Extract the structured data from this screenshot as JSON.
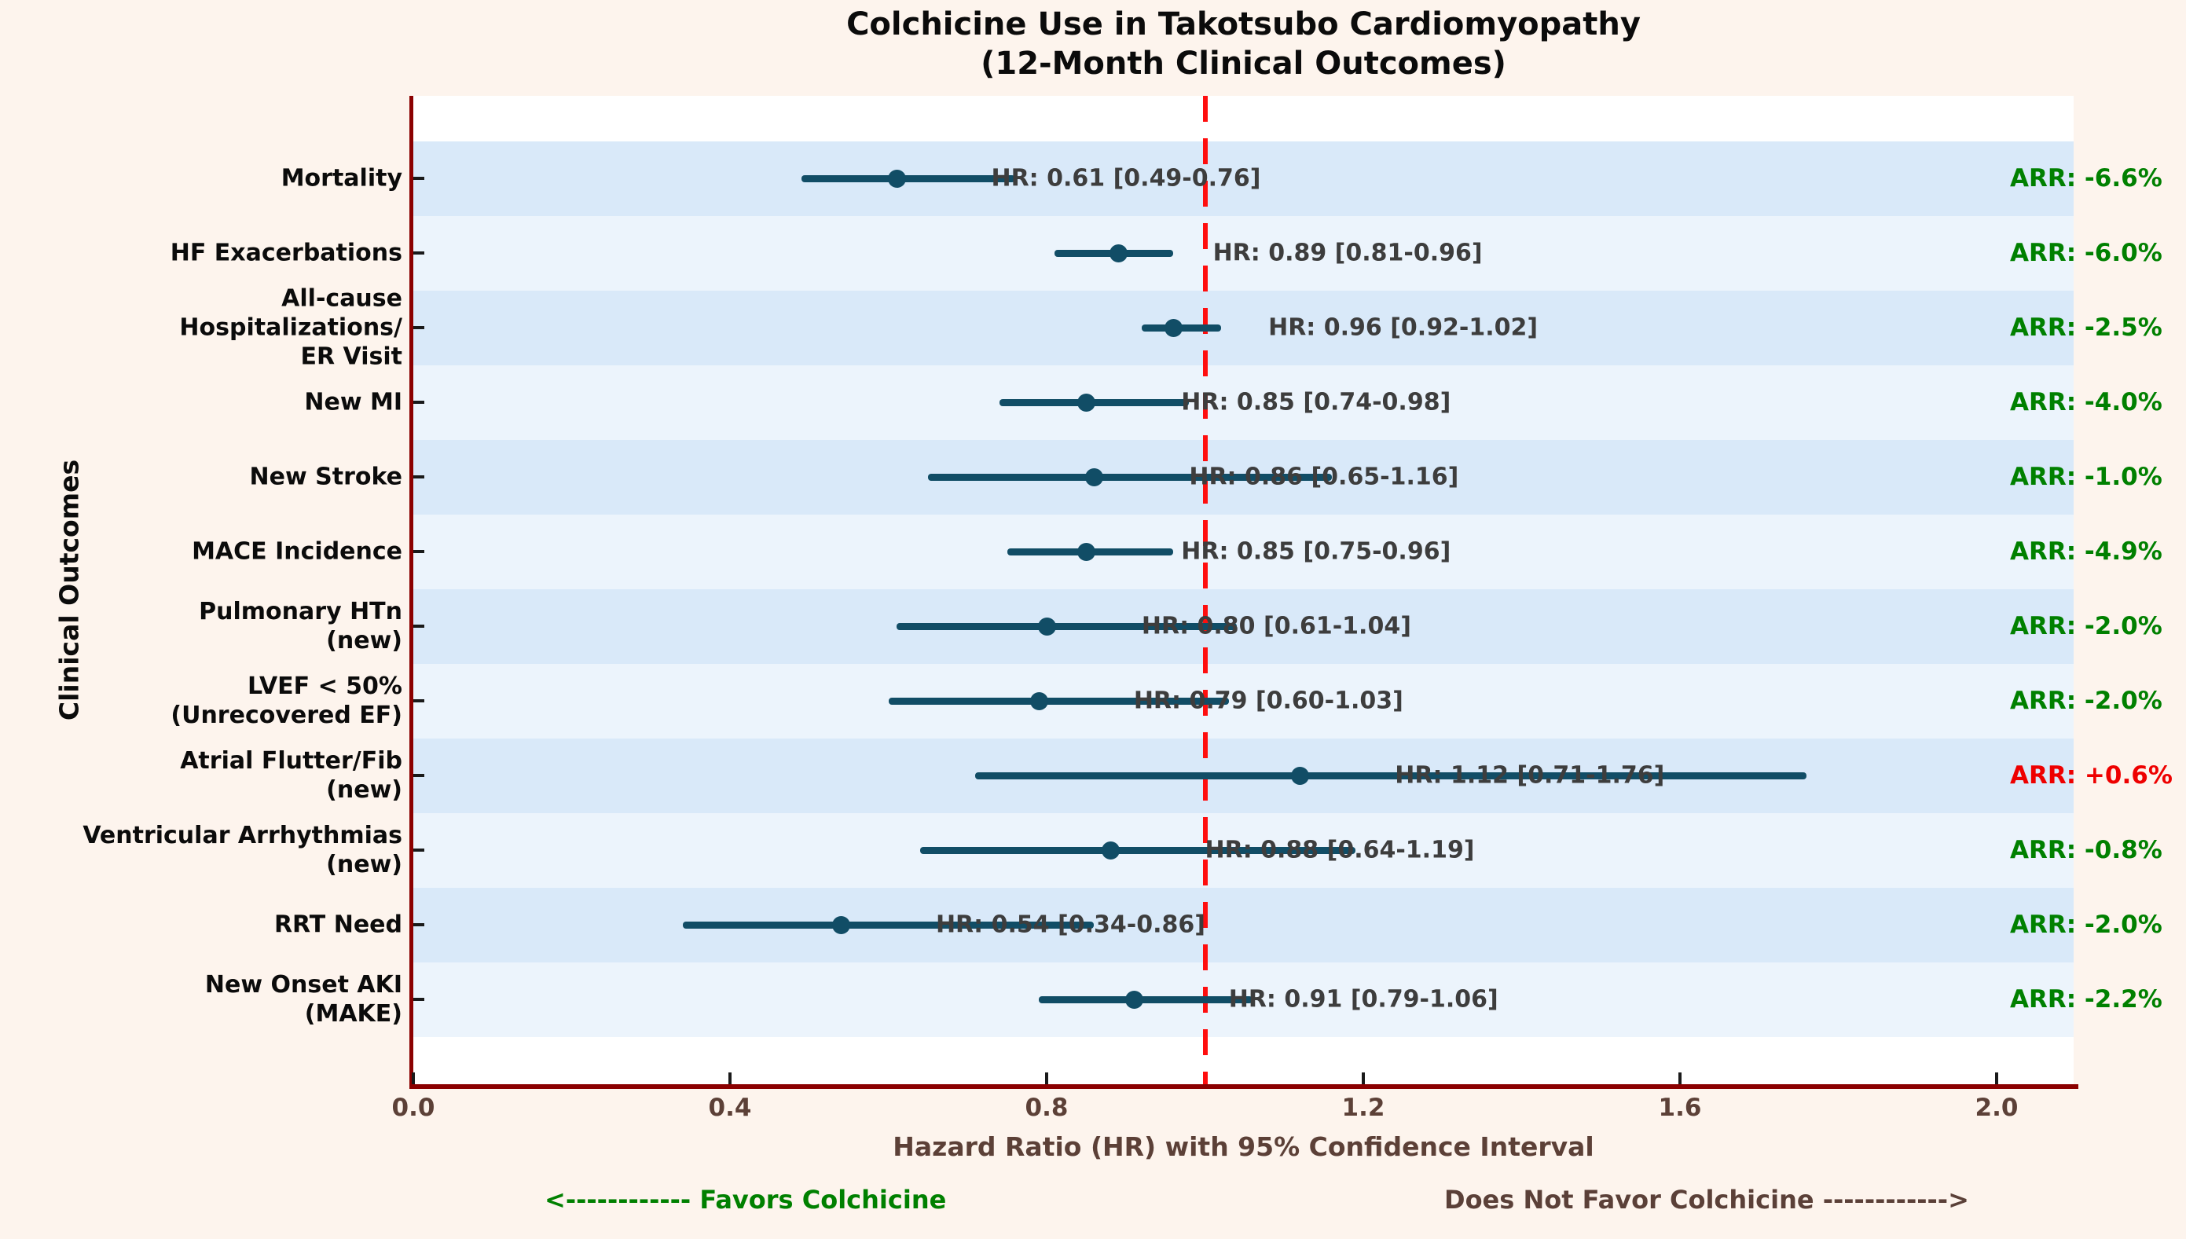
{
  "title": {
    "line1": "Colchicine Use in Takotsubo Cardiomyopathy",
    "line2": "(12-Month Clinical Outcomes)"
  },
  "axes": {
    "x_label": "Hazard Ratio (HR) with 95% Confidence Interval",
    "y_label": "Clinical Outcomes"
  },
  "footer": {
    "favors": "<------------ Favors Colchicine",
    "does_not_favor": "Does Not Favor Colchicine ------------>"
  },
  "colors": {
    "figure_background": "#FDF4ED",
    "plot_background": "#FFFFFF",
    "stripe_dark": "#D9E9F9",
    "stripe_light": "#ECF4FC",
    "spine": "#8B0000",
    "ci_and_marker": "#114D66",
    "hr_text": "#3D3D3D",
    "arr_green": "#008000",
    "arr_red": "#EE0000",
    "reference_line_red": "#FF0E0E",
    "axis_text_brown": "#5C4037"
  },
  "chart_data": {
    "type": "forest",
    "title": "Colchicine Use in Takotsubo Cardiomyopathy",
    "subtitle": "(12-Month Clinical Outcomes)",
    "xlabel": "Hazard Ratio (HR) with 95% Confidence Interval",
    "ylabel": "Clinical Outcomes",
    "xlim": [
      0.0,
      2.097
    ],
    "x_ticks": [
      0.0,
      0.4,
      0.8,
      1.2,
      1.6,
      2.0
    ],
    "x_tick_labels": [
      "0.0",
      "0.4",
      "0.8",
      "1.2",
      "1.6",
      "2.0"
    ],
    "reference_line_x": 1.0,
    "grid": false,
    "legend": "none",
    "rows": [
      {
        "outcome": "Mortality",
        "label_lines": [
          "Mortality"
        ],
        "hr": 0.61,
        "ci_low": 0.49,
        "ci_high": 0.76,
        "hr_label": "HR: 0.61 [0.49-0.76]",
        "arr": -6.6,
        "arr_label": "ARR: -6.6%",
        "arr_status": "green"
      },
      {
        "outcome": "HF Exacerbations",
        "label_lines": [
          "HF Exacerbations"
        ],
        "hr": 0.89,
        "ci_low": 0.81,
        "ci_high": 0.96,
        "hr_label": "HR: 0.89 [0.81-0.96]",
        "arr": -6.0,
        "arr_label": "ARR: -6.0%",
        "arr_status": "green"
      },
      {
        "outcome": "All-cause Hospitalizations/ER Visit",
        "label_lines": [
          "All-cause",
          "Hospitalizations/",
          "ER Visit"
        ],
        "hr": 0.96,
        "ci_low": 0.92,
        "ci_high": 1.02,
        "hr_label": "HR: 0.96 [0.92-1.02]",
        "arr": -2.5,
        "arr_label": "ARR: -2.5%",
        "arr_status": "green"
      },
      {
        "outcome": "New MI",
        "label_lines": [
          "New MI"
        ],
        "hr": 0.85,
        "ci_low": 0.74,
        "ci_high": 0.98,
        "hr_label": "HR: 0.85 [0.74-0.98]",
        "arr": -4.0,
        "arr_label": "ARR: -4.0%",
        "arr_status": "green"
      },
      {
        "outcome": "New Stroke",
        "label_lines": [
          "New Stroke"
        ],
        "hr": 0.86,
        "ci_low": 0.65,
        "ci_high": 1.16,
        "hr_label": "HR: 0.86 [0.65-1.16]",
        "arr": -1.0,
        "arr_label": "ARR: -1.0%",
        "arr_status": "green"
      },
      {
        "outcome": "MACE Incidence",
        "label_lines": [
          "MACE Incidence"
        ],
        "hr": 0.85,
        "ci_low": 0.75,
        "ci_high": 0.96,
        "hr_label": "HR: 0.85 [0.75-0.96]",
        "arr": -4.9,
        "arr_label": "ARR: -4.9%",
        "arr_status": "green"
      },
      {
        "outcome": "Pulmonary HTn (new)",
        "label_lines": [
          "Pulmonary HTn",
          "(new)"
        ],
        "hr": 0.8,
        "ci_low": 0.61,
        "ci_high": 1.04,
        "hr_label": "HR: 0.80 [0.61-1.04]",
        "arr": -2.0,
        "arr_label": "ARR: -2.0%",
        "arr_status": "green"
      },
      {
        "outcome": "LVEF < 50% (Unrecovered EF)",
        "label_lines": [
          "LVEF < 50%",
          "(Unrecovered EF)"
        ],
        "hr": 0.79,
        "ci_low": 0.6,
        "ci_high": 1.03,
        "hr_label": "HR: 0.79 [0.60-1.03]",
        "arr": -2.0,
        "arr_label": "ARR: -2.0%",
        "arr_status": "green"
      },
      {
        "outcome": "Atrial Flutter/Fib (new)",
        "label_lines": [
          "Atrial Flutter/Fib",
          "(new)"
        ],
        "hr": 1.12,
        "ci_low": 0.71,
        "ci_high": 1.76,
        "hr_label": "HR: 1.12 [0.71-1.76]",
        "arr": 0.6,
        "arr_label": "ARR: +0.6%",
        "arr_status": "red"
      },
      {
        "outcome": "Ventricular Arrhythmias (new)",
        "label_lines": [
          "Ventricular Arrhythmias",
          "(new)"
        ],
        "hr": 0.88,
        "ci_low": 0.64,
        "ci_high": 1.19,
        "hr_label": "HR: 0.88 [0.64-1.19]",
        "arr": -0.8,
        "arr_label": "ARR: -0.8%",
        "arr_status": "green"
      },
      {
        "outcome": "RRT Need",
        "label_lines": [
          "RRT Need"
        ],
        "hr": 0.54,
        "ci_low": 0.34,
        "ci_high": 0.86,
        "hr_label": "HR: 0.54 [0.34-0.86]",
        "arr": -2.0,
        "arr_label": "ARR: -2.0%",
        "arr_status": "green"
      },
      {
        "outcome": "New Onset AKI (MAKE)",
        "label_lines": [
          "New Onset AKI",
          "(MAKE)"
        ],
        "hr": 0.91,
        "ci_low": 0.79,
        "ci_high": 1.06,
        "hr_label": "HR: 0.91 [0.79-1.06]",
        "arr": -2.2,
        "arr_label": "ARR: -2.2%",
        "arr_status": "green"
      }
    ]
  }
}
